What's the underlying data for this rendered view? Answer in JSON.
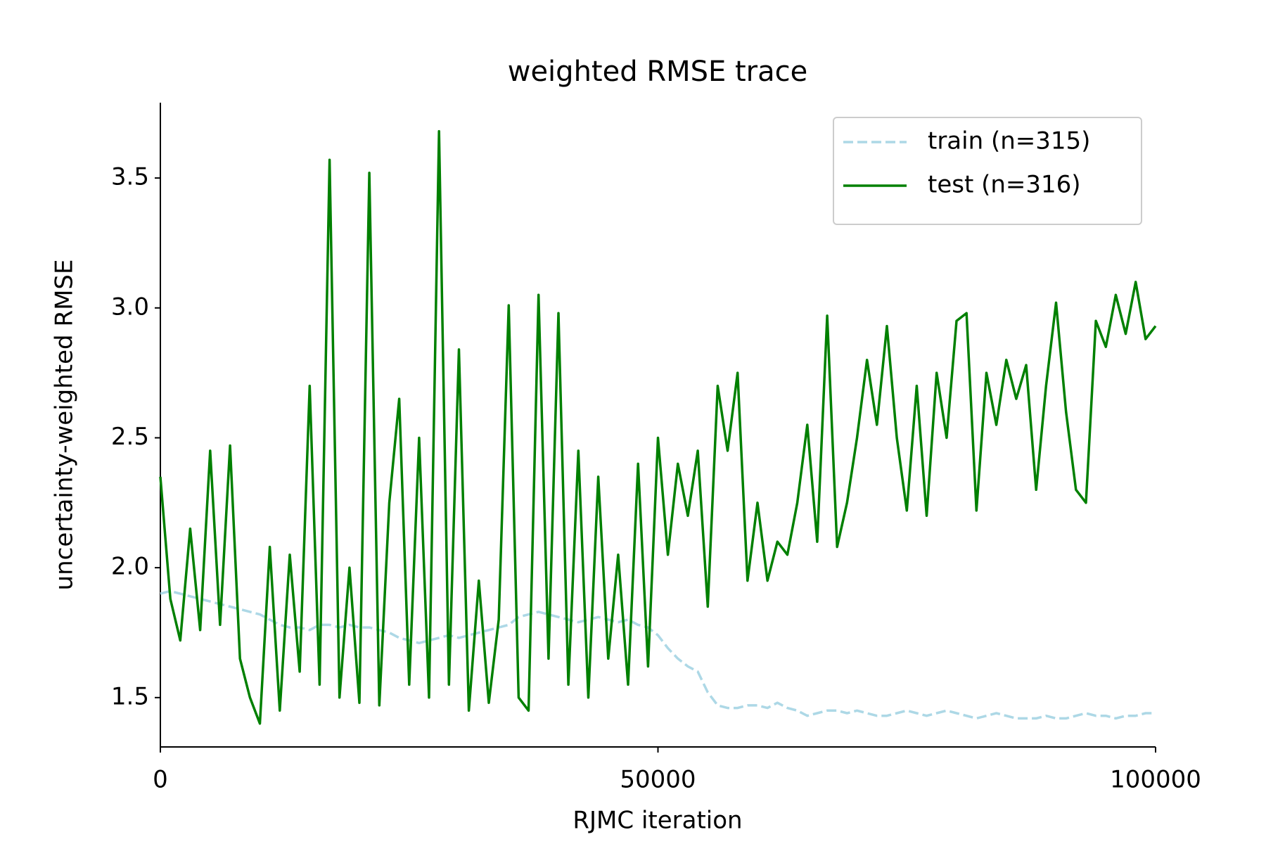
{
  "chart_data": {
    "type": "line",
    "title": "weighted RMSE trace",
    "xlabel": "RJMC iteration",
    "ylabel": "uncertainty-weighted RMSE",
    "xlim": [
      0,
      100000
    ],
    "ylim": [
      1.31,
      3.79
    ],
    "xticks": [
      0,
      50000,
      100000
    ],
    "yticks": [
      1.5,
      {
        "value": 2,
        "label": "2.0"
      },
      2.5,
      {
        "value": 3,
        "label": "3.0"
      },
      3.5
    ],
    "grid": false,
    "legend": "upper right",
    "x": [
      0,
      1000,
      2000,
      3000,
      4000,
      5000,
      6000,
      7000,
      8000,
      9000,
      10000,
      11000,
      12000,
      13000,
      14000,
      15000,
      16000,
      17000,
      18000,
      19000,
      20000,
      21000,
      22000,
      23000,
      24000,
      25000,
      26000,
      27000,
      28000,
      29000,
      30000,
      31000,
      32000,
      33000,
      34000,
      35000,
      36000,
      37000,
      38000,
      39000,
      40000,
      41000,
      42000,
      43000,
      44000,
      45000,
      46000,
      47000,
      48000,
      49000,
      50000,
      51000,
      52000,
      53000,
      54000,
      55000,
      56000,
      57000,
      58000,
      59000,
      60000,
      61000,
      62000,
      63000,
      64000,
      65000,
      66000,
      67000,
      68000,
      69000,
      70000,
      71000,
      72000,
      73000,
      74000,
      75000,
      76000,
      77000,
      78000,
      79000,
      80000,
      81000,
      82000,
      83000,
      84000,
      85000,
      86000,
      87000,
      88000,
      89000,
      90000,
      91000,
      92000,
      93000,
      94000,
      95000,
      96000,
      97000,
      98000,
      99000,
      100000
    ],
    "series": [
      {
        "name": "train (n=315)",
        "color": "#add8e6",
        "style": "dashed",
        "values": [
          1.9,
          1.91,
          1.9,
          1.89,
          1.88,
          1.87,
          1.86,
          1.85,
          1.84,
          1.83,
          1.82,
          1.8,
          1.78,
          1.77,
          1.77,
          1.76,
          1.78,
          1.78,
          1.77,
          1.78,
          1.77,
          1.77,
          1.76,
          1.75,
          1.73,
          1.72,
          1.71,
          1.72,
          1.73,
          1.74,
          1.73,
          1.74,
          1.75,
          1.76,
          1.77,
          1.78,
          1.81,
          1.82,
          1.83,
          1.82,
          1.81,
          1.8,
          1.79,
          1.8,
          1.81,
          1.8,
          1.79,
          1.8,
          1.78,
          1.77,
          1.74,
          1.69,
          1.65,
          1.62,
          1.6,
          1.52,
          1.47,
          1.46,
          1.46,
          1.47,
          1.47,
          1.46,
          1.48,
          1.46,
          1.45,
          1.43,
          1.44,
          1.45,
          1.45,
          1.44,
          1.45,
          1.44,
          1.43,
          1.43,
          1.44,
          1.45,
          1.44,
          1.43,
          1.44,
          1.45,
          1.44,
          1.43,
          1.42,
          1.43,
          1.44,
          1.43,
          1.42,
          1.42,
          1.42,
          1.43,
          1.42,
          1.42,
          1.43,
          1.44,
          1.43,
          1.43,
          1.42,
          1.43,
          1.43,
          1.44,
          1.44
        ]
      },
      {
        "name": "test (n=316)",
        "color": "#008000",
        "style": "solid",
        "values": [
          2.35,
          1.88,
          1.72,
          2.15,
          1.76,
          2.45,
          1.78,
          2.47,
          1.65,
          1.5,
          1.4,
          2.08,
          1.45,
          2.05,
          1.6,
          2.7,
          1.55,
          3.57,
          1.5,
          2.0,
          1.48,
          3.52,
          1.47,
          2.25,
          2.65,
          1.55,
          2.5,
          1.5,
          3.68,
          1.55,
          2.84,
          1.45,
          1.95,
          1.48,
          1.8,
          3.01,
          1.5,
          1.45,
          3.05,
          1.65,
          2.98,
          1.55,
          2.45,
          1.5,
          2.35,
          1.65,
          2.05,
          1.55,
          2.4,
          1.62,
          2.5,
          2.05,
          2.4,
          2.2,
          2.45,
          1.85,
          2.7,
          2.45,
          2.75,
          1.95,
          2.25,
          1.95,
          2.1,
          2.05,
          2.25,
          2.55,
          2.1,
          2.97,
          2.08,
          2.25,
          2.5,
          2.8,
          2.55,
          2.93,
          2.5,
          2.22,
          2.7,
          2.2,
          2.75,
          2.5,
          2.95,
          2.98,
          2.22,
          2.75,
          2.55,
          2.8,
          2.65,
          2.78,
          2.3,
          2.7,
          3.02,
          2.6,
          2.3,
          2.25,
          2.95,
          2.85,
          3.05,
          2.9,
          3.1,
          2.88,
          2.93
        ]
      }
    ]
  }
}
